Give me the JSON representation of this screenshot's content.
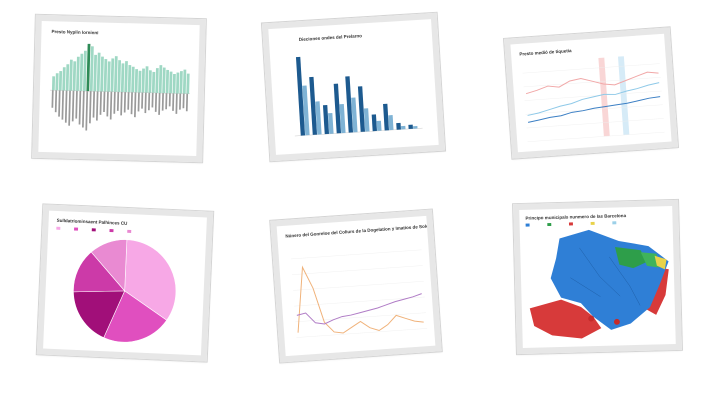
{
  "cards": [
    {
      "id": "card-1",
      "title": "Presto Nyplin lorninni",
      "chart_data": {
        "type": "bar",
        "note": "diverging bar chart (mirrored values above/below baseline), green bars above, gray bars below",
        "colors": {
          "positive": "#9fd8c4",
          "negative": "#9a9a9a",
          "highlight": "#2e8b57"
        },
        "values_top": [
          18,
          22,
          25,
          30,
          34,
          40,
          38,
          44,
          48,
          52,
          61,
          58,
          47,
          50,
          45,
          42,
          39,
          43,
          46,
          41,
          37,
          40,
          35,
          33,
          30,
          28,
          31,
          34,
          29,
          27,
          32,
          36,
          33,
          30,
          28,
          25,
          27,
          29,
          31,
          26
        ],
        "values_bottom": [
          12,
          15,
          18,
          20,
          22,
          24,
          21,
          19,
          23,
          25,
          27,
          22,
          18,
          20,
          16,
          14,
          17,
          19,
          15,
          13,
          16,
          14,
          12,
          15,
          17,
          13,
          11,
          14,
          12,
          10,
          13,
          15,
          12,
          11,
          9,
          12,
          14,
          11,
          10,
          12
        ]
      }
    },
    {
      "id": "card-2",
      "title": "Dieciones ondes del Prelarno",
      "chart_data": {
        "type": "bar",
        "categories": [
          "",
          "",
          "",
          "",
          "",
          "",
          "",
          "",
          "",
          ""
        ],
        "series": [
          {
            "name": "",
            "values": [
              95,
              70,
              35,
              60,
              68,
              55,
              20,
              32,
              8,
              5
            ],
            "color": "#1d5a8f"
          },
          {
            "name": "",
            "values": [
              60,
              40,
              25,
              35,
              42,
              28,
              12,
              18,
              4,
              3
            ],
            "color": "#7fb3d5"
          }
        ],
        "ylim": [
          0,
          100
        ]
      }
    },
    {
      "id": "card-3",
      "title": "Presto medió de tiquetia",
      "chart_data": {
        "type": "line",
        "x": [
          0,
          1,
          2,
          3,
          4,
          5,
          6,
          7,
          8,
          9,
          10,
          11,
          12
        ],
        "series": [
          {
            "name": "",
            "color": "#f1a7a7",
            "values": [
              55,
              58,
              62,
              60,
              66,
              68,
              64,
              60,
              58,
              62,
              66,
              70,
              68
            ]
          },
          {
            "name": "",
            "color": "#8ec9e8",
            "values": [
              30,
              32,
              35,
              38,
              40,
              44,
              46,
              48,
              47,
              50,
              52,
              55,
              57
            ]
          },
          {
            "name": "",
            "color": "#3b7fc4",
            "values": [
              22,
              24,
              26,
              27,
              30,
              31,
              33,
              34,
              35,
              36,
              38,
              40,
              41
            ]
          }
        ],
        "ylim": [
          0,
          90
        ]
      }
    },
    {
      "id": "card-4",
      "title": "Sulldatriominsaent Palhinces CU",
      "chart_data": {
        "type": "pie",
        "categories": [
          "A",
          "B",
          "C",
          "D",
          "E"
        ],
        "values": [
          34,
          22,
          18,
          14,
          12
        ],
        "colors": [
          "#f7a8e6",
          "#e04fbf",
          "#a10f79",
          "#cc3aa8",
          "#e98ad2"
        ]
      }
    },
    {
      "id": "card-5",
      "title": "Núnero del Gonreloe del Coliurs de la Dogelation y Imatios de Soloniceranis",
      "chart_data": {
        "type": "line",
        "x": [
          0,
          1,
          2,
          3,
          4,
          5,
          6,
          7,
          8,
          9,
          10,
          11,
          12,
          13,
          14
        ],
        "series": [
          {
            "name": "",
            "color": "#f0b27a",
            "values": [
              10,
              85,
              60,
              20,
              8,
              6,
              12,
              18,
              10,
              6,
              12,
              22,
              18,
              14,
              12
            ]
          },
          {
            "name": "",
            "color": "#b07cc6",
            "values": [
              30,
              32,
              20,
              18,
              22,
              25,
              26,
              28,
              30,
              32,
              35,
              38,
              40,
              42,
              45
            ]
          }
        ],
        "ylim": [
          0,
          100
        ]
      }
    },
    {
      "id": "card-6",
      "title": "Principo municipals nunmero de las Barcelona",
      "chart_data": {
        "type": "heatmap",
        "note": "choropleth map of Barcelona districts, mostly blue, with green/red/yellow patches",
        "colors": {
          "base": "#2f7fd6",
          "accent1": "#2e9e4a",
          "accent2": "#d73a3a",
          "accent3": "#e8d24a"
        }
      }
    }
  ]
}
